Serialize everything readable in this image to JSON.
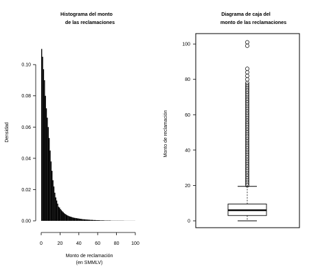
{
  "chart_data": [
    {
      "type": "histogram",
      "title": [
        "Histograma del monto",
        "de las reclamaciones"
      ],
      "xlabel": [
        "Monto de reclamación",
        "(en SMMLV)"
      ],
      "ylabel": "Densidad",
      "xlim": [
        0,
        100
      ],
      "ylim": [
        0,
        0.115
      ],
      "x_ticks": [
        0,
        20,
        40,
        60,
        80,
        100
      ],
      "y_ticks": [
        0.0,
        0.02,
        0.04,
        0.06,
        0.08,
        0.1
      ],
      "y_tick_labels": [
        "0.00",
        "0.02",
        "0.04",
        "0.06",
        "0.08",
        "0.10"
      ],
      "bin_width": 1,
      "density_values": [
        0.11,
        0.105,
        0.097,
        0.09,
        0.08,
        0.072,
        0.066,
        0.06,
        0.053,
        0.045,
        0.038,
        0.032,
        0.026,
        0.022,
        0.018,
        0.015,
        0.013,
        0.011,
        0.009,
        0.0085,
        0.0075,
        0.0068,
        0.0061,
        0.0055,
        0.0049,
        0.0044,
        0.004,
        0.0036,
        0.0033,
        0.003,
        0.0028,
        0.0026,
        0.0024,
        0.0022,
        0.002,
        0.0019,
        0.0018,
        0.0017,
        0.0016,
        0.0015,
        0.0014,
        0.0013,
        0.0012,
        0.0011,
        0.001,
        0.001,
        0.0009,
        0.0009,
        0.0008,
        0.0008,
        0.0007,
        0.0007,
        0.0006,
        0.0006,
        0.0006,
        0.0005,
        0.0005,
        0.0005,
        0.0004,
        0.0004,
        0.0004,
        0.0004,
        0.0003,
        0.0003,
        0.0003,
        0.0003,
        0.0003,
        0.0002,
        0.0002,
        0.0002,
        0.0002,
        0.0002,
        0.0002,
        0.0002,
        0.0001,
        0.0001,
        0.0001,
        0.0001,
        0.0001,
        0.0001,
        0.0001,
        0.0001,
        0.0001,
        0.0001,
        0.0001,
        0.0001,
        0.0001,
        0.0001,
        5e-05,
        5e-05,
        5e-05,
        5e-05,
        5e-05,
        5e-05,
        5e-05,
        5e-05,
        5e-05,
        5e-05,
        5e-05,
        5e-05
      ]
    },
    {
      "type": "boxplot",
      "title": [
        "Diagrama de caja del",
        "monto de las reclamaciones"
      ],
      "ylabel": "Monto de reclamación",
      "ylim": [
        0,
        102
      ],
      "y_ticks": [
        0,
        20,
        40,
        60,
        80,
        100
      ],
      "min": 0,
      "q1": 3,
      "median": 6,
      "q3": 9.5,
      "whisker_low": 0,
      "whisker_high": 19.5,
      "outliers": [
        20,
        21,
        22,
        23,
        24,
        25,
        26,
        27,
        28,
        29,
        30,
        31,
        32,
        33,
        34,
        35,
        36,
        37,
        38,
        39,
        40,
        41,
        42,
        43,
        44,
        45,
        46,
        47,
        48,
        49,
        50,
        51,
        52,
        53,
        54,
        55,
        56,
        57,
        58,
        59,
        60,
        61,
        62,
        63,
        64,
        65,
        66,
        67,
        68,
        69,
        70,
        71,
        72,
        73,
        74,
        75,
        76,
        77,
        78,
        80,
        82,
        84,
        86,
        99,
        101
      ]
    }
  ]
}
